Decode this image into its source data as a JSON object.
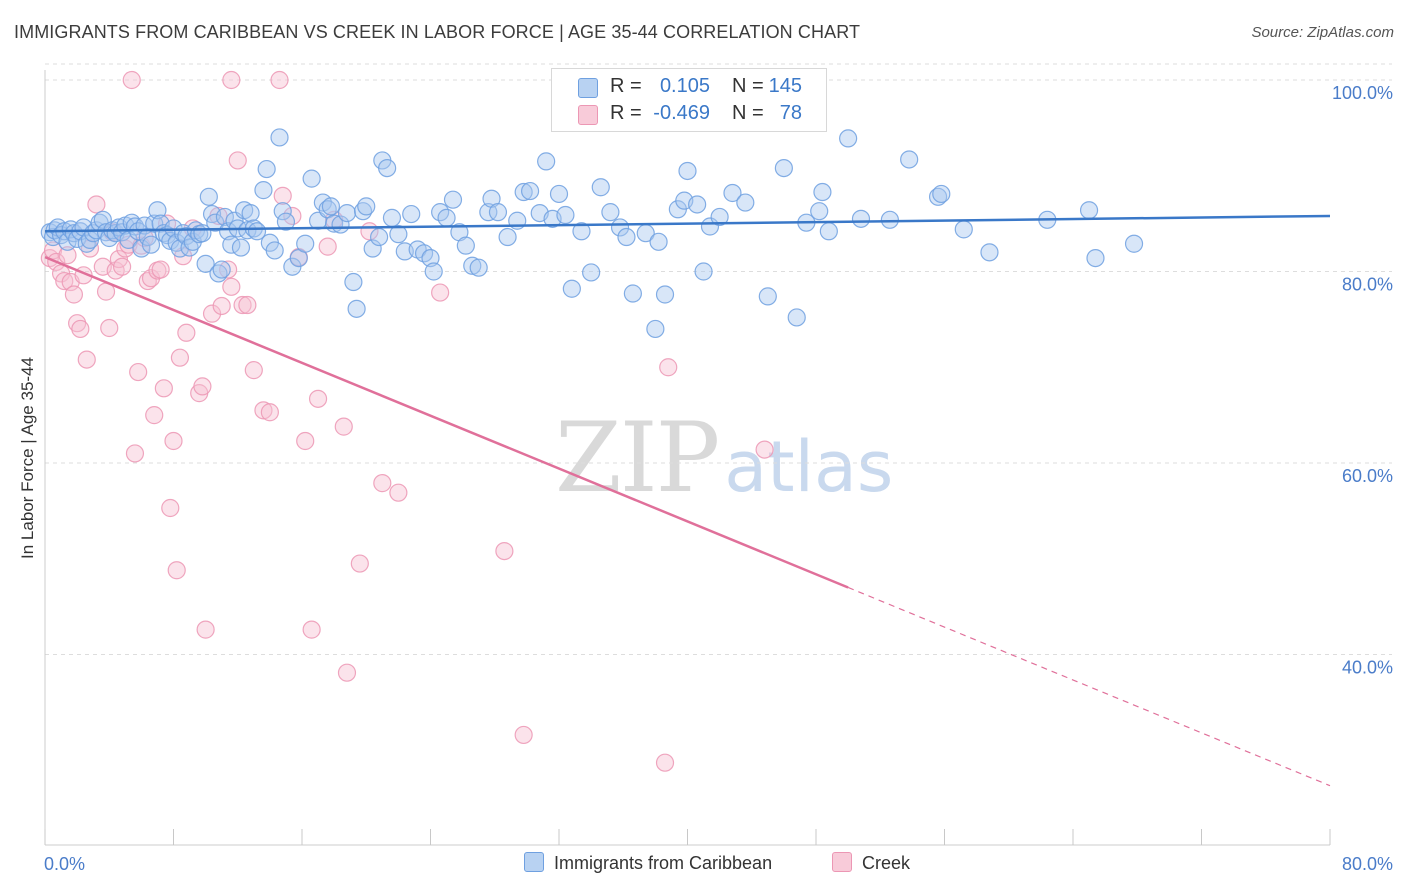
{
  "title": "IMMIGRANTS FROM CARIBBEAN VS CREEK IN LABOR FORCE | AGE 35-44 CORRELATION CHART",
  "source": "Source: ZipAtlas.com",
  "watermark": {
    "zip": "ZIP",
    "atlas": "atlas"
  },
  "colors": {
    "blue": "#6fa0e0",
    "blue_fill": "#a9c8ef",
    "blue_line": "#3a78c8",
    "pink": "#ec97b4",
    "pink_fill": "#f7c2d3",
    "pink_line": "#e0709a",
    "tick_label": "#4a7cc9",
    "grid": "#dddddd"
  },
  "legend": {
    "rows": [
      {
        "r_label": "R =",
        "r_value": "0.105",
        "n_label": "N =",
        "n_value": "145"
      },
      {
        "r_label": "R =",
        "r_value": "-0.469",
        "n_label": "N =",
        "n_value": "78"
      }
    ]
  },
  "chart_data": {
    "type": "scatter",
    "title": "IMMIGRANTS FROM CARIBBEAN VS CREEK IN LABOR FORCE | AGE 35-44 CORRELATION CHART",
    "xlabel": "",
    "ylabel": "In Labor Force | Age 35-44",
    "xlim": [
      0,
      80
    ],
    "ylim": [
      20,
      102
    ],
    "x_tick_labels": [
      "0.0%",
      "80.0%"
    ],
    "y_ticks": [
      40,
      60,
      80,
      100
    ],
    "y_tick_labels": [
      "40.0%",
      "60.0%",
      "80.0%",
      "100.0%"
    ],
    "grid": true,
    "legend_position": "top-center",
    "series": [
      {
        "name": "Immigrants from Caribbean",
        "color": "#6fa0e0",
        "r": 0.105,
        "n": 145,
        "trend": {
          "x": [
            0,
            80
          ],
          "y": [
            84.2,
            85.8
          ],
          "dashed_from": null
        },
        "points": [
          [
            0.3,
            84.1
          ],
          [
            0.5,
            83.6
          ],
          [
            0.6,
            84.3
          ],
          [
            0.8,
            84.6
          ],
          [
            1.0,
            83.8
          ],
          [
            1.2,
            84.2
          ],
          [
            1.4,
            83.1
          ],
          [
            1.6,
            84.4
          ],
          [
            1.8,
            84.0
          ],
          [
            2.0,
            83.4
          ],
          [
            2.2,
            84.2
          ],
          [
            2.4,
            84.6
          ],
          [
            2.6,
            82.9
          ],
          [
            2.8,
            83.3
          ],
          [
            3.0,
            84.0
          ],
          [
            3.2,
            84.3
          ],
          [
            3.4,
            85.1
          ],
          [
            3.6,
            85.4
          ],
          [
            3.8,
            84.1
          ],
          [
            4.0,
            83.5
          ],
          [
            4.2,
            84.3
          ],
          [
            4.4,
            84.0
          ],
          [
            4.6,
            84.6
          ],
          [
            4.8,
            84.1
          ],
          [
            5.0,
            84.8
          ],
          [
            5.2,
            83.3
          ],
          [
            5.4,
            85.1
          ],
          [
            5.6,
            84.7
          ],
          [
            5.8,
            84.2
          ],
          [
            6.0,
            82.4
          ],
          [
            6.2,
            84.8
          ],
          [
            6.4,
            83.6
          ],
          [
            6.6,
            82.8
          ],
          [
            6.8,
            85.0
          ],
          [
            7.0,
            86.4
          ],
          [
            7.2,
            85.0
          ],
          [
            7.4,
            84.0
          ],
          [
            7.6,
            83.8
          ],
          [
            7.8,
            83.2
          ],
          [
            8.0,
            84.5
          ],
          [
            8.2,
            83.0
          ],
          [
            8.4,
            82.4
          ],
          [
            8.6,
            84.0
          ],
          [
            8.8,
            83.7
          ],
          [
            9.0,
            82.5
          ],
          [
            9.2,
            83.1
          ],
          [
            9.4,
            84.3
          ],
          [
            9.6,
            83.9
          ],
          [
            9.8,
            84.0
          ],
          [
            10.0,
            80.8
          ],
          [
            10.2,
            87.8
          ],
          [
            10.4,
            86.0
          ],
          [
            10.6,
            85.1
          ],
          [
            10.8,
            79.8
          ],
          [
            11.0,
            80.2
          ],
          [
            11.2,
            85.7
          ],
          [
            11.4,
            84.2
          ],
          [
            11.6,
            82.8
          ],
          [
            11.8,
            85.3
          ],
          [
            12.0,
            84.5
          ],
          [
            12.2,
            82.5
          ],
          [
            12.4,
            86.4
          ],
          [
            12.6,
            84.3
          ],
          [
            12.8,
            86.1
          ],
          [
            13.0,
            84.5
          ],
          [
            13.2,
            84.2
          ],
          [
            13.6,
            88.5
          ],
          [
            13.8,
            90.7
          ],
          [
            14.0,
            83.0
          ],
          [
            14.3,
            82.2
          ],
          [
            14.6,
            94.0
          ],
          [
            14.8,
            86.3
          ],
          [
            15.0,
            85.2
          ],
          [
            15.4,
            80.5
          ],
          [
            15.8,
            81.4
          ],
          [
            16.2,
            82.9
          ],
          [
            16.6,
            89.7
          ],
          [
            17.0,
            85.3
          ],
          [
            17.3,
            87.2
          ],
          [
            17.6,
            86.5
          ],
          [
            17.8,
            86.8
          ],
          [
            18.0,
            85.0
          ],
          [
            18.4,
            84.9
          ],
          [
            18.8,
            86.1
          ],
          [
            19.2,
            78.9
          ],
          [
            19.4,
            76.1
          ],
          [
            19.8,
            86.3
          ],
          [
            20.0,
            86.8
          ],
          [
            20.4,
            82.4
          ],
          [
            20.8,
            83.6
          ],
          [
            21.0,
            91.6
          ],
          [
            21.3,
            90.8
          ],
          [
            21.6,
            85.6
          ],
          [
            22.0,
            83.9
          ],
          [
            22.4,
            82.1
          ],
          [
            22.8,
            86.0
          ],
          [
            23.2,
            82.3
          ],
          [
            23.6,
            81.9
          ],
          [
            24.0,
            81.4
          ],
          [
            24.2,
            80.0
          ],
          [
            24.6,
            86.2
          ],
          [
            25.0,
            85.6
          ],
          [
            25.4,
            87.5
          ],
          [
            25.8,
            84.1
          ],
          [
            26.2,
            82.7
          ],
          [
            26.6,
            80.6
          ],
          [
            27.0,
            80.4
          ],
          [
            27.6,
            86.2
          ],
          [
            27.8,
            87.6
          ],
          [
            28.2,
            86.2
          ],
          [
            28.8,
            83.6
          ],
          [
            29.4,
            85.3
          ],
          [
            29.8,
            88.3
          ],
          [
            30.2,
            88.4
          ],
          [
            30.8,
            86.1
          ],
          [
            31.6,
            85.5
          ],
          [
            32.0,
            88.1
          ],
          [
            31.2,
            91.5
          ],
          [
            32.4,
            85.9
          ],
          [
            32.8,
            78.2
          ],
          [
            33.4,
            84.2
          ],
          [
            34.0,
            79.9
          ],
          [
            34.6,
            88.8
          ],
          [
            35.2,
            86.2
          ],
          [
            35.8,
            84.6
          ],
          [
            36.2,
            83.6
          ],
          [
            36.6,
            77.7
          ],
          [
            37.4,
            84.0
          ],
          [
            38.0,
            74.0
          ],
          [
            38.2,
            83.1
          ],
          [
            38.6,
            77.6
          ],
          [
            39.4,
            86.5
          ],
          [
            40.0,
            90.5
          ],
          [
            39.8,
            87.4
          ],
          [
            40.6,
            87.0
          ],
          [
            41.0,
            80.0
          ],
          [
            41.4,
            84.7
          ],
          [
            42.0,
            85.7
          ],
          [
            42.8,
            88.2
          ],
          [
            43.6,
            87.2
          ],
          [
            45.0,
            77.4
          ],
          [
            46.0,
            90.8
          ],
          [
            46.8,
            75.2
          ],
          [
            47.4,
            85.1
          ],
          [
            48.2,
            86.3
          ],
          [
            48.4,
            88.3
          ],
          [
            48.8,
            84.2
          ],
          [
            50.0,
            93.9
          ],
          [
            50.8,
            85.5
          ],
          [
            52.6,
            85.4
          ],
          [
            53.8,
            91.7
          ],
          [
            55.6,
            87.8
          ],
          [
            55.8,
            88.1
          ],
          [
            57.2,
            84.4
          ],
          [
            58.8,
            82.0
          ],
          [
            62.4,
            85.4
          ],
          [
            65.0,
            86.4
          ],
          [
            65.4,
            81.4
          ],
          [
            67.8,
            82.9
          ]
        ]
      },
      {
        "name": "Creek",
        "color": "#ec97b4",
        "r": -0.469,
        "n": 78,
        "trend": {
          "x": [
            0,
            80
          ],
          "y": [
            81.5,
            26.3
          ],
          "dashed_from": 50
        },
        "points": [
          [
            0.3,
            81.4
          ],
          [
            0.5,
            82.2
          ],
          [
            0.7,
            81.0
          ],
          [
            1.0,
            79.8
          ],
          [
            1.2,
            79.0
          ],
          [
            1.4,
            81.7
          ],
          [
            1.6,
            78.9
          ],
          [
            1.8,
            77.6
          ],
          [
            2.0,
            74.6
          ],
          [
            2.2,
            74.0
          ],
          [
            2.4,
            79.6
          ],
          [
            2.6,
            70.8
          ],
          [
            2.8,
            82.4
          ],
          [
            3.2,
            87.0
          ],
          [
            3.6,
            80.5
          ],
          [
            3.8,
            77.9
          ],
          [
            4.0,
            74.1
          ],
          [
            4.2,
            84.1
          ],
          [
            4.4,
            80.1
          ],
          [
            4.6,
            81.3
          ],
          [
            4.8,
            80.5
          ],
          [
            5.0,
            82.4
          ],
          [
            5.2,
            82.8
          ],
          [
            5.6,
            61.0
          ],
          [
            5.8,
            69.5
          ],
          [
            6.0,
            82.7
          ],
          [
            6.2,
            83.5
          ],
          [
            6.4,
            79.0
          ],
          [
            6.6,
            79.3
          ],
          [
            6.8,
            65.0
          ],
          [
            7.0,
            80.1
          ],
          [
            7.2,
            80.2
          ],
          [
            7.4,
            67.8
          ],
          [
            7.6,
            85.0
          ],
          [
            7.8,
            55.3
          ],
          [
            8.0,
            62.3
          ],
          [
            8.2,
            48.8
          ],
          [
            8.4,
            71.0
          ],
          [
            8.6,
            81.6
          ],
          [
            8.8,
            73.6
          ],
          [
            9.2,
            84.5
          ],
          [
            9.6,
            67.3
          ],
          [
            9.8,
            68.0
          ],
          [
            10.0,
            42.6
          ],
          [
            10.4,
            75.6
          ],
          [
            10.8,
            85.8
          ],
          [
            11.0,
            76.4
          ],
          [
            11.4,
            80.2
          ],
          [
            11.6,
            78.4
          ],
          [
            12.0,
            91.6
          ],
          [
            12.3,
            76.5
          ],
          [
            12.6,
            76.5
          ],
          [
            13.0,
            69.7
          ],
          [
            13.6,
            65.5
          ],
          [
            14.0,
            65.3
          ],
          [
            14.6,
            100.0
          ],
          [
            14.8,
            87.9
          ],
          [
            15.4,
            85.8
          ],
          [
            15.8,
            81.5
          ],
          [
            16.2,
            62.3
          ],
          [
            16.6,
            42.6
          ],
          [
            17.0,
            66.7
          ],
          [
            17.6,
            82.6
          ],
          [
            18.0,
            85.4
          ],
          [
            18.6,
            63.8
          ],
          [
            18.8,
            38.1
          ],
          [
            19.6,
            49.5
          ],
          [
            20.2,
            84.2
          ],
          [
            21.0,
            57.9
          ],
          [
            22.0,
            56.9
          ],
          [
            24.6,
            77.8
          ],
          [
            28.6,
            50.8
          ],
          [
            29.8,
            31.6
          ],
          [
            38.6,
            28.7
          ],
          [
            38.8,
            70.0
          ],
          [
            44.8,
            61.4
          ],
          [
            5.4,
            100.0
          ],
          [
            11.6,
            100.0
          ]
        ]
      }
    ]
  },
  "bottom_legend": [
    {
      "label": "Immigrants from Caribbean"
    },
    {
      "label": "Creek"
    }
  ]
}
